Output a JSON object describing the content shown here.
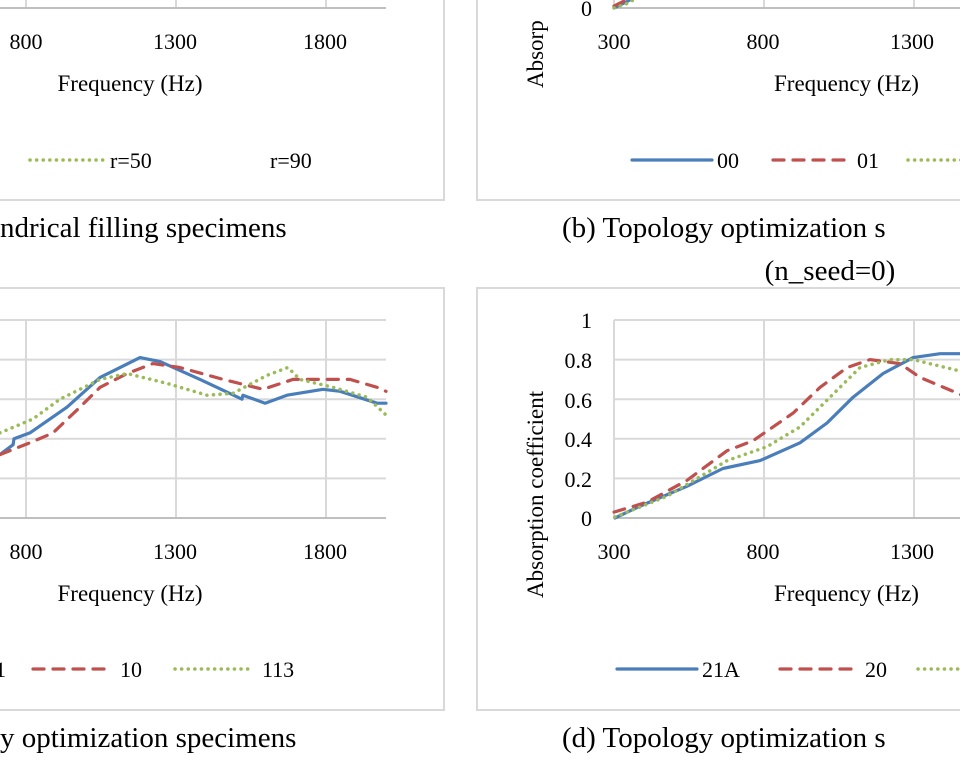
{
  "colors": {
    "series_solid": "#4a7ebb",
    "series_dashed": "#c0504d",
    "series_dotted": "#9bbb59",
    "grid": "#d9d9d9",
    "frame": "#d9d9d9"
  },
  "captions": {
    "a": "ndrical filling specimens",
    "b_line1": "(b) Topology optimization s",
    "b_line2": "(n_seed=0)",
    "c": "y optimization specimens",
    "d": "(d) Topology optimization s"
  },
  "chart_data": [
    {
      "id": "a",
      "type": "line",
      "xlabel": "Frequency (Hz)",
      "ylabel": "",
      "xlim": [
        300,
        2000
      ],
      "ylim": [
        0,
        1
      ],
      "x_ticks": [
        "800",
        "1300",
        "1800"
      ],
      "y_ticks": [],
      "grid": true,
      "legend": "bottom",
      "series": [
        {
          "name": "r=50",
          "style": "dashed",
          "points": []
        },
        {
          "name": "r=90",
          "style": "dotted",
          "points": []
        }
      ]
    },
    {
      "id": "b",
      "type": "line",
      "xlabel": "Frequency (Hz)",
      "ylabel": "Absorp",
      "xlim": [
        300,
        2000
      ],
      "ylim": [
        0,
        1
      ],
      "x_ticks": [
        "300",
        "800",
        "1300"
      ],
      "y_ticks": [
        "0"
      ],
      "grid": true,
      "legend": "bottom",
      "series": [
        {
          "name": "00",
          "style": "solid",
          "points": [
            [
              300,
              0
            ],
            [
              340,
              0.03
            ],
            [
              400,
              0.08
            ]
          ]
        },
        {
          "name": "01",
          "style": "dashed",
          "points": [
            [
              300,
              0.01
            ],
            [
              340,
              0.04
            ],
            [
              400,
              0.09
            ]
          ]
        },
        {
          "name": "",
          "style": "dotted",
          "points": [
            [
              300,
              0
            ],
            [
              340,
              0.02
            ],
            [
              400,
              0.07
            ]
          ]
        }
      ]
    },
    {
      "id": "c",
      "type": "line",
      "xlabel": "Frequency (Hz)",
      "ylabel": "",
      "xlim": [
        300,
        2000
      ],
      "ylim": [
        0,
        1
      ],
      "x_ticks": [
        "800",
        "1300",
        "1800"
      ],
      "y_ticks": [],
      "grid": true,
      "legend": "bottom",
      "series": [
        {
          "name": "1",
          "style": "solid",
          "points": [
            [
              713,
              0.32
            ],
            [
              757,
              0.37
            ],
            [
              760,
              0.4
            ],
            [
              813,
              0.43
            ],
            [
              937,
              0.56
            ],
            [
              1047,
              0.71
            ],
            [
              1180,
              0.81
            ],
            [
              1247,
              0.79
            ],
            [
              1380,
              0.7
            ],
            [
              1520,
              0.6
            ],
            [
              1523,
              0.62
            ],
            [
              1597,
              0.58
            ],
            [
              1670,
              0.62
            ],
            [
              1790,
              0.65
            ],
            [
              1847,
              0.64
            ],
            [
              1970,
              0.58
            ],
            [
              2000,
              0.58
            ]
          ]
        },
        {
          "name": "10",
          "style": "dashed",
          "points": [
            [
              713,
              0.32
            ],
            [
              813,
              0.38
            ],
            [
              890,
              0.43
            ],
            [
              980,
              0.56
            ],
            [
              1047,
              0.66
            ],
            [
              1137,
              0.73
            ],
            [
              1223,
              0.78
            ],
            [
              1313,
              0.76
            ],
            [
              1457,
              0.7
            ],
            [
              1590,
              0.65
            ],
            [
              1690,
              0.7
            ],
            [
              1780,
              0.7
            ],
            [
              1880,
              0.7
            ],
            [
              1970,
              0.66
            ],
            [
              2000,
              0.64
            ]
          ]
        },
        {
          "name": "113",
          "style": "dotted",
          "points": [
            [
              713,
              0.43
            ],
            [
              823,
              0.5
            ],
            [
              913,
              0.6
            ],
            [
              1047,
              0.7
            ],
            [
              1137,
              0.73
            ],
            [
              1270,
              0.68
            ],
            [
              1403,
              0.62
            ],
            [
              1490,
              0.63
            ],
            [
              1603,
              0.72
            ],
            [
              1673,
              0.76
            ],
            [
              1713,
              0.7
            ],
            [
              1823,
              0.66
            ],
            [
              1937,
              0.61
            ],
            [
              2000,
              0.52
            ]
          ]
        }
      ]
    },
    {
      "id": "d",
      "type": "line",
      "xlabel": "Frequency (Hz)",
      "ylabel": "Absorption coefficient",
      "xlim": [
        300,
        2000
      ],
      "ylim": [
        0,
        1
      ],
      "x_ticks": [
        "300",
        "800",
        "1300"
      ],
      "y_ticks": [
        "0",
        "0.2",
        "0.4",
        "0.6",
        "0.8",
        "1"
      ],
      "grid": true,
      "legend": "bottom",
      "series": [
        {
          "name": "21A",
          "style": "solid",
          "points": [
            [
              303,
              0
            ],
            [
              387,
              0.06
            ],
            [
              543,
              0.16
            ],
            [
              663,
              0.25
            ],
            [
              787,
              0.29
            ],
            [
              920,
              0.38
            ],
            [
              1010,
              0.48
            ],
            [
              1097,
              0.61
            ],
            [
              1197,
              0.73
            ],
            [
              1297,
              0.81
            ],
            [
              1387,
              0.83
            ],
            [
              1460,
              0.83
            ]
          ]
        },
        {
          "name": "20",
          "style": "dashed",
          "points": [
            [
              300,
              0.03
            ],
            [
              410,
              0.08
            ],
            [
              543,
              0.19
            ],
            [
              677,
              0.34
            ],
            [
              763,
              0.39
            ],
            [
              897,
              0.53
            ],
            [
              987,
              0.66
            ],
            [
              1077,
              0.76
            ],
            [
              1153,
              0.8
            ],
            [
              1253,
              0.78
            ],
            [
              1320,
              0.71
            ],
            [
              1430,
              0.64
            ],
            [
              1460,
              0.62
            ]
          ]
        },
        {
          "name": "",
          "style": "dotted",
          "points": [
            [
              303,
              0.005
            ],
            [
              477,
              0.11
            ],
            [
              677,
              0.29
            ],
            [
              810,
              0.36
            ],
            [
              920,
              0.46
            ],
            [
              1020,
              0.61
            ],
            [
              1120,
              0.76
            ],
            [
              1220,
              0.8
            ],
            [
              1297,
              0.8
            ],
            [
              1460,
              0.74
            ]
          ]
        }
      ]
    }
  ]
}
